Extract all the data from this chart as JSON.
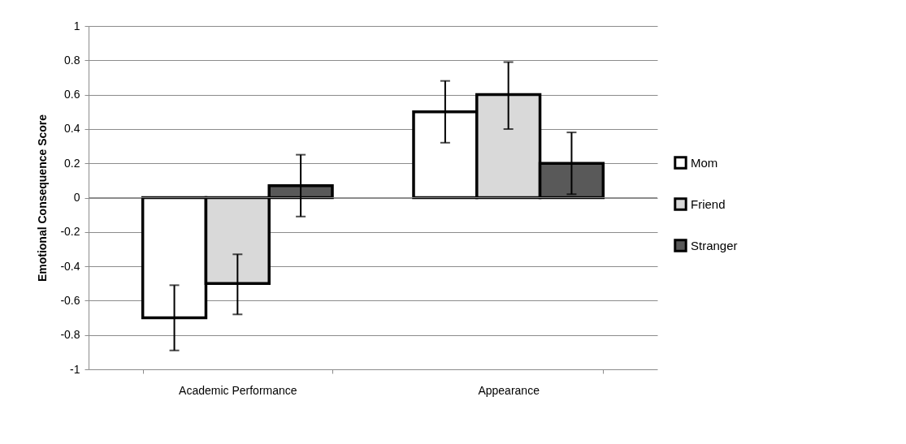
{
  "chart_data": {
    "type": "bar",
    "ylabel": "Emotional Consequence Score",
    "categories": [
      "Academic Performance",
      "Appearance"
    ],
    "series": [
      {
        "name": "Mom",
        "color": "#ffffff",
        "values": [
          -0.7,
          0.5
        ],
        "errors": [
          [
            -0.89,
            -0.51
          ],
          [
            0.32,
            0.68
          ]
        ]
      },
      {
        "name": "Friend",
        "color": "#d9d9d9",
        "values": [
          -0.5,
          0.6
        ],
        "errors": [
          [
            -0.68,
            -0.33
          ],
          [
            0.4,
            0.79
          ]
        ]
      },
      {
        "name": "Stranger",
        "color": "#595959",
        "values": [
          0.07,
          0.2
        ],
        "errors": [
          [
            -0.11,
            0.25
          ],
          [
            0.02,
            0.38
          ]
        ]
      }
    ],
    "ylim": [
      -1,
      1
    ],
    "yticks": [
      -1,
      -0.8,
      -0.6,
      -0.4,
      -0.2,
      0,
      0.2,
      0.4,
      0.6,
      0.8,
      1
    ],
    "grid": "y",
    "legend": "right"
  }
}
